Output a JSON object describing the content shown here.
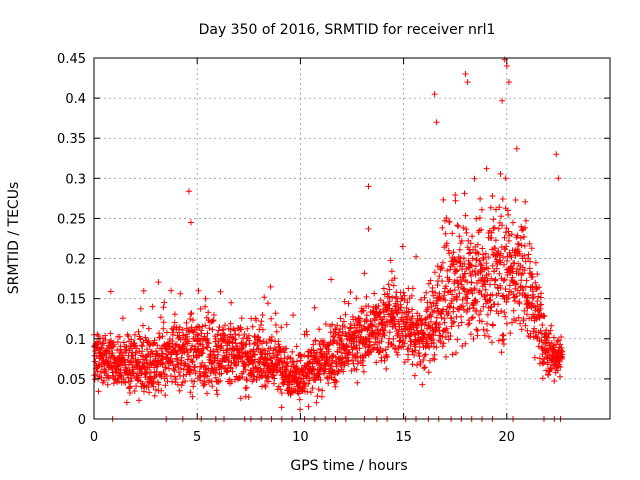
{
  "chart_data": {
    "type": "scatter",
    "title": "Day 350 of 2016, SRMTID for receiver nrl1",
    "xlabel": "GPS time / hours",
    "ylabel": "SRMTID / TECUs",
    "xlim": [
      0,
      25
    ],
    "ylim": [
      0,
      0.45
    ],
    "x_ticks": [
      "0",
      "5",
      "10",
      "15",
      "20"
    ],
    "x_tick_values": [
      0,
      5,
      10,
      15,
      20
    ],
    "y_ticks": [
      "0",
      "0.05",
      "0.1",
      "0.15",
      "0.2",
      "0.25",
      "0.3",
      "0.35",
      "0.4",
      "0.45"
    ],
    "y_tick_values": [
      0,
      0.05,
      0.1,
      0.15,
      0.2,
      0.25,
      0.3,
      0.35,
      0.4,
      0.45
    ],
    "grid": true,
    "marker": "+",
    "color": "#ff0000",
    "series": [
      {
        "name": "nrl1",
        "x_start": 0.0,
        "x_end": 22.7,
        "points_approx": 2700,
        "envelope_hours": [
          0,
          1,
          2,
          3,
          4,
          5,
          6,
          7,
          8,
          9,
          10,
          11,
          12,
          13,
          14,
          15,
          16,
          17,
          18,
          19,
          20,
          21,
          22,
          22.7
        ],
        "median_by_hour": [
          0.075,
          0.07,
          0.07,
          0.065,
          0.08,
          0.085,
          0.08,
          0.08,
          0.075,
          0.07,
          0.05,
          0.07,
          0.085,
          0.1,
          0.12,
          0.12,
          0.1,
          0.15,
          0.17,
          0.17,
          0.19,
          0.17,
          0.08,
          0.08
        ],
        "spread_by_hour": [
          0.025,
          0.025,
          0.03,
          0.03,
          0.04,
          0.04,
          0.035,
          0.035,
          0.03,
          0.03,
          0.025,
          0.03,
          0.03,
          0.035,
          0.035,
          0.04,
          0.04,
          0.06,
          0.06,
          0.06,
          0.07,
          0.06,
          0.025,
          0.02
        ],
        "peaks": [
          {
            "x": 4.6,
            "y": 0.284
          },
          {
            "x": 4.7,
            "y": 0.245
          },
          {
            "x": 13.3,
            "y": 0.29
          },
          {
            "x": 13.3,
            "y": 0.237
          },
          {
            "x": 16.5,
            "y": 0.405
          },
          {
            "x": 16.6,
            "y": 0.37
          },
          {
            "x": 18.0,
            "y": 0.43
          },
          {
            "x": 18.1,
            "y": 0.42
          },
          {
            "x": 19.9,
            "y": 0.448
          },
          {
            "x": 20.0,
            "y": 0.44
          },
          {
            "x": 20.1,
            "y": 0.42
          },
          {
            "x": 22.4,
            "y": 0.33
          },
          {
            "x": 22.5,
            "y": 0.3
          }
        ],
        "zero_values_at_hours": [
          0.9,
          3.5,
          4.3,
          5.2,
          5.9,
          6.3,
          7.3,
          7.6,
          8.1,
          8.6,
          9.1,
          9.6,
          10.2,
          10.7,
          11.2,
          11.7,
          12.2,
          13.1,
          13.7,
          14.2,
          15.1,
          15.6,
          16.2,
          16.7,
          17.3,
          17.8,
          18.3,
          18.8,
          19.3,
          20.3,
          21.8,
          22.3,
          22.6
        ]
      }
    ]
  }
}
